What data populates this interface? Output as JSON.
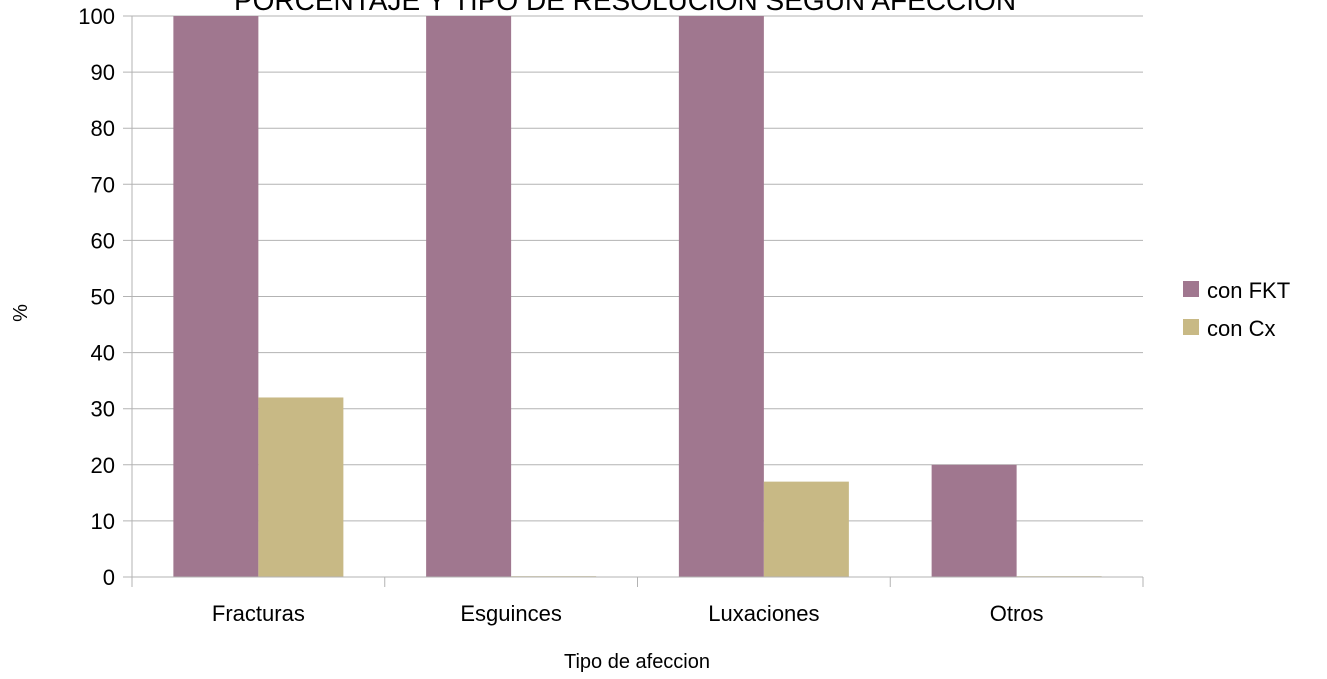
{
  "chart_data": {
    "type": "bar",
    "title": "PORCENTAJE Y TIPO DE RESOLUCION SEGUN AFECCION",
    "xlabel": "Tipo de afeccion",
    "ylabel": "%",
    "categories": [
      "Fracturas",
      "Esguinces",
      "Luxaciones",
      "Otros"
    ],
    "series": [
      {
        "name": "con FKT",
        "color": "#a0778f",
        "values": [
          100,
          100,
          100,
          20
        ]
      },
      {
        "name": "con Cx",
        "color": "#c8b985",
        "values": [
          32,
          0,
          17,
          0
        ]
      }
    ],
    "ylim": [
      0,
      100
    ],
    "yticks": [
      0,
      10,
      20,
      30,
      40,
      50,
      60,
      70,
      80,
      90,
      100
    ],
    "grid": true,
    "legend_position": "right"
  }
}
